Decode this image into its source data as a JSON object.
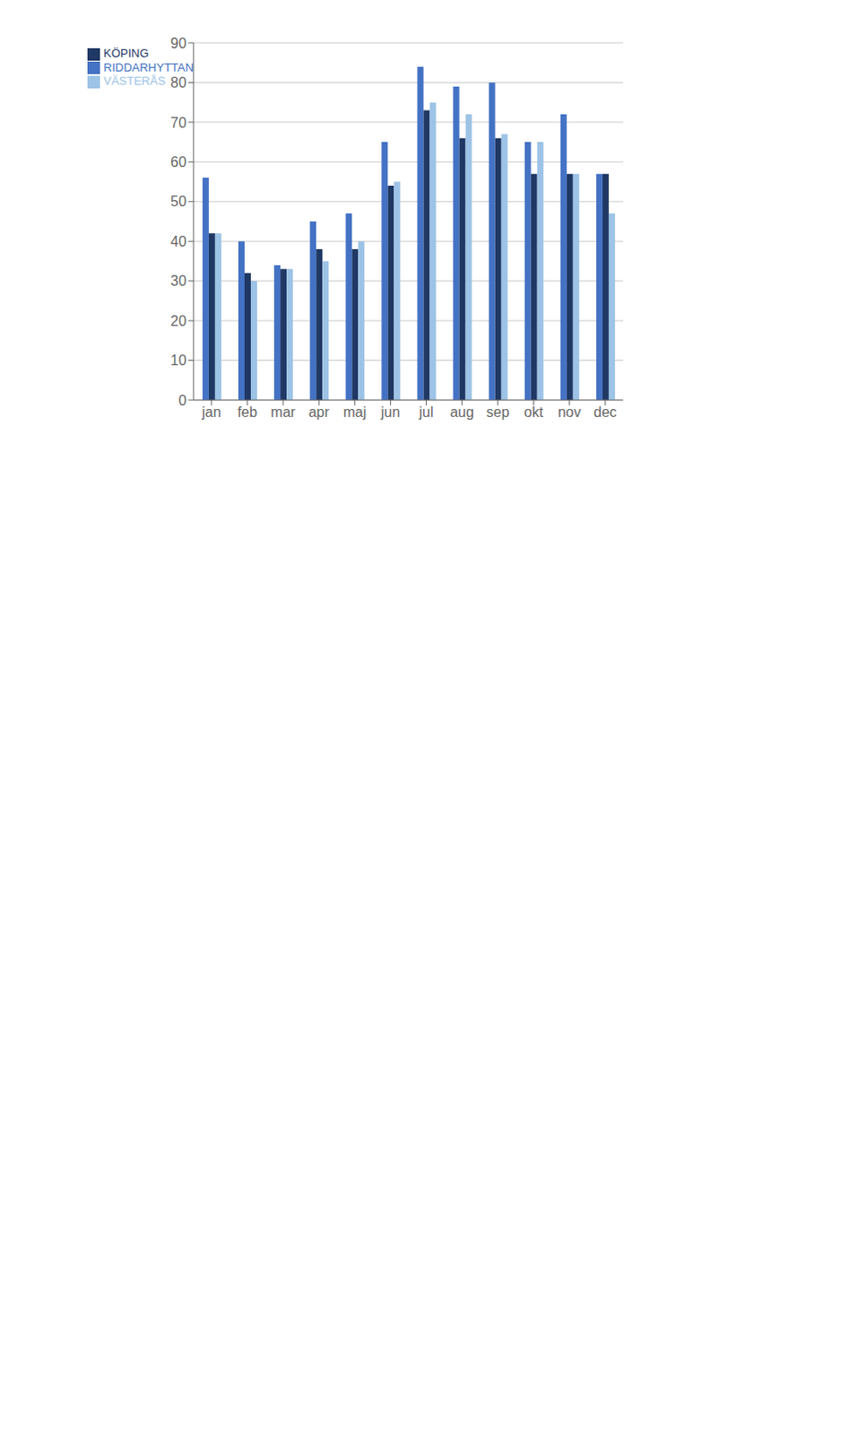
{
  "chart_data": {
    "type": "bar",
    "categories": [
      "jan",
      "feb",
      "mar",
      "apr",
      "maj",
      "jun",
      "jul",
      "aug",
      "sep",
      "okt",
      "nov",
      "dec"
    ],
    "series": [
      {
        "name": "RIDDARHYTTAN",
        "color": "#4472C4",
        "values": [
          56,
          40,
          34,
          45,
          47,
          65,
          84,
          79,
          80,
          65,
          72,
          57
        ]
      },
      {
        "name": "KÖPING",
        "color": "#1F3864",
        "values": [
          42,
          32,
          33,
          38,
          38,
          54,
          73,
          66,
          66,
          57,
          57,
          57
        ]
      },
      {
        "name": "VÄSTERÅS",
        "color": "#9DC3E6",
        "values": [
          42,
          30,
          33,
          35,
          40,
          55,
          75,
          72,
          67,
          65,
          57,
          47
        ]
      }
    ],
    "ylim": [
      0,
      90
    ],
    "yticks": [
      0,
      10,
      20,
      30,
      40,
      50,
      60,
      70,
      80,
      90
    ],
    "grid": true,
    "legend": "upper left"
  }
}
